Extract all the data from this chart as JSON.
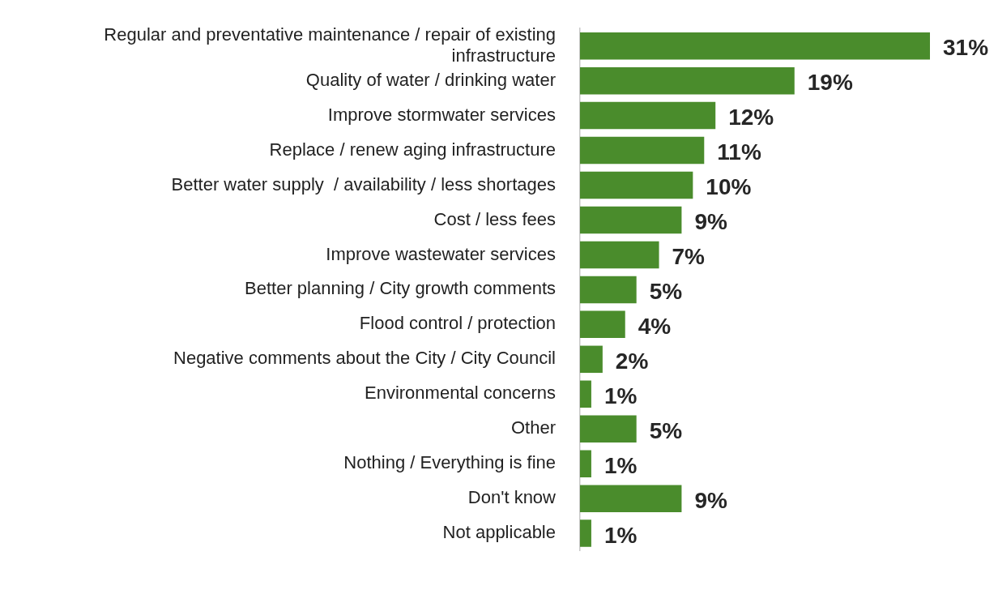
{
  "chart_data": {
    "type": "bar",
    "orientation": "horizontal",
    "categories": [
      "Regular and preventative maintenance / repair of existing infrastructure",
      "Quality of water / drinking water",
      "Improve stormwater services",
      "Replace / renew aging infrastructure",
      "Better water supply  / availability / less shortages",
      "Cost / less fees",
      "Improve wastewater services",
      "Better planning / City growth comments",
      "Flood control / protection",
      "Negative comments about the City / City Council",
      "Environmental concerns",
      "Other",
      "Nothing / Everything is fine",
      "Don't know",
      "Not applicable"
    ],
    "values": [
      31,
      19,
      12,
      11,
      10,
      9,
      7,
      5,
      4,
      2,
      1,
      5,
      1,
      9,
      1
    ],
    "value_labels": [
      "31%",
      "19%",
      "12%",
      "11%",
      "10%",
      "9%",
      "7%",
      "5%",
      "4%",
      "2%",
      "1%",
      "5%",
      "1%",
      "9%",
      "1%"
    ],
    "color": "#4a8c2c",
    "grid": false,
    "legend": false
  }
}
